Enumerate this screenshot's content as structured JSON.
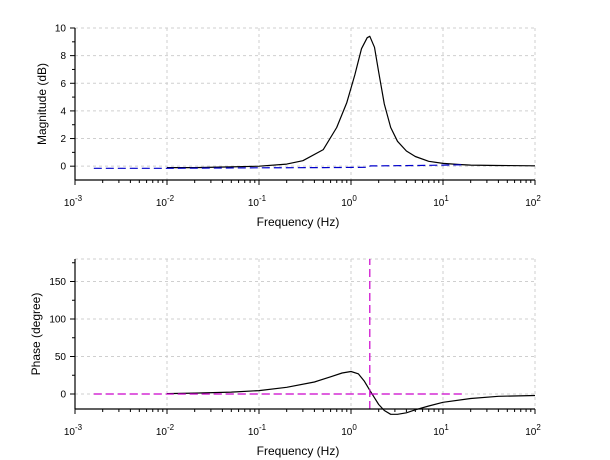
{
  "chart_data": [
    {
      "type": "line",
      "xlabel": "Frequency (Hz)",
      "ylabel": "Magnitude (dB)",
      "x_scale": "log",
      "xlim": [
        0.001,
        100
      ],
      "ylim": [
        -1,
        10
      ],
      "grid": true,
      "x_ticks": [
        {
          "base": "10",
          "exp": "-3"
        },
        {
          "base": "10",
          "exp": "-2"
        },
        {
          "base": "10",
          "exp": "-1"
        },
        {
          "base": "10",
          "exp": "0"
        },
        {
          "base": "10",
          "exp": "1"
        },
        {
          "base": "10",
          "exp": "2"
        }
      ],
      "y_ticks": [
        "0",
        "2",
        "4",
        "6",
        "8",
        "10"
      ],
      "series": [
        {
          "color": "#000000",
          "dash": "solid",
          "x": [
            0.01,
            0.02,
            0.05,
            0.1,
            0.2,
            0.3,
            0.5,
            0.7,
            0.9,
            1.1,
            1.3,
            1.5,
            1.6,
            1.8,
            2.0,
            2.3,
            2.7,
            3.2,
            4,
            5,
            7,
            10,
            15,
            20,
            40,
            100
          ],
          "y": [
            -0.1,
            -0.1,
            -0.05,
            0.0,
            0.15,
            0.4,
            1.2,
            2.8,
            4.6,
            6.6,
            8.5,
            9.3,
            9.4,
            8.6,
            6.8,
            4.5,
            2.8,
            1.8,
            1.1,
            0.7,
            0.35,
            0.2,
            0.12,
            0.08,
            0.05,
            0.03
          ]
        },
        {
          "color": "#0000cc",
          "dash": "dashed",
          "x": [
            0.0016,
            0.01,
            0.1,
            0.5,
            1.55,
            1.62,
            5,
            10,
            16
          ],
          "y": [
            -0.15,
            -0.15,
            -0.12,
            -0.1,
            -0.08,
            0.02,
            0.05,
            0.08,
            0.1
          ]
        }
      ]
    },
    {
      "type": "line",
      "xlabel": "Frequency (Hz)",
      "ylabel": "Phase (degree)",
      "x_scale": "log",
      "xlim": [
        0.001,
        100
      ],
      "ylim": [
        -20,
        180
      ],
      "grid": true,
      "x_ticks": [
        {
          "base": "10",
          "exp": "-3"
        },
        {
          "base": "10",
          "exp": "-2"
        },
        {
          "base": "10",
          "exp": "-1"
        },
        {
          "base": "10",
          "exp": "0"
        },
        {
          "base": "10",
          "exp": "1"
        },
        {
          "base": "10",
          "exp": "2"
        }
      ],
      "y_ticks": [
        "0",
        "50",
        "100",
        "150"
      ],
      "series": [
        {
          "color": "#000000",
          "dash": "solid",
          "x": [
            0.01,
            0.02,
            0.05,
            0.1,
            0.2,
            0.4,
            0.6,
            0.8,
            1.0,
            1.2,
            1.4,
            1.6,
            1.8,
            2.0,
            2.3,
            2.7,
            3.2,
            4,
            5,
            7,
            10,
            20,
            40,
            100
          ],
          "y": [
            0.5,
            1.2,
            2.5,
            4.5,
            9,
            16,
            23,
            28,
            30,
            27,
            17,
            5,
            -5,
            -14,
            -22,
            -27,
            -27,
            -25,
            -21,
            -16,
            -11,
            -6,
            -3,
            -2
          ]
        },
        {
          "color": "#cc00cc",
          "dash": "dashed",
          "x": [
            0.0016,
            16
          ],
          "y": [
            0,
            0
          ]
        },
        {
          "color": "#cc00cc",
          "dash": "dashed",
          "x": [
            1.6,
            1.6
          ],
          "y": [
            -20,
            180
          ]
        }
      ]
    }
  ]
}
